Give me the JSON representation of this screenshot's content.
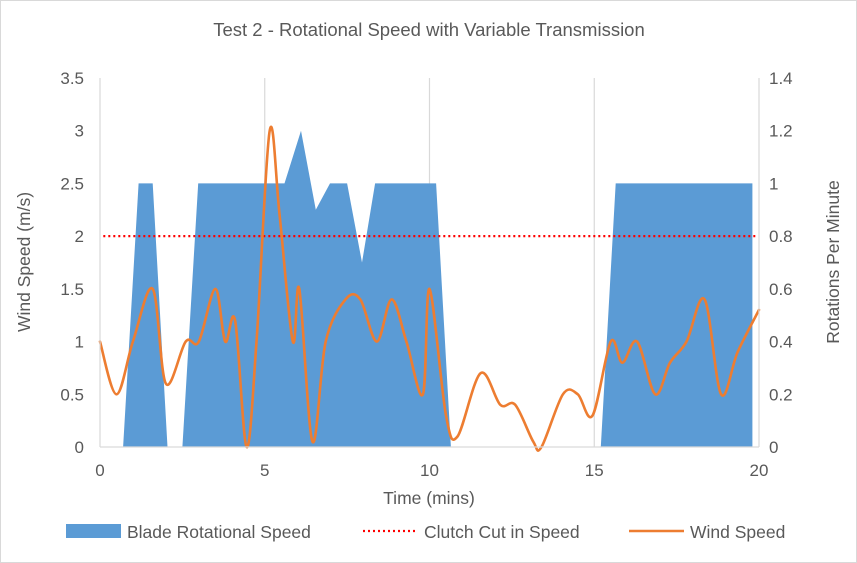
{
  "chart_data": {
    "type": "area",
    "title": "Test 2 - Rotational Speed with Variable Transmission",
    "xlabel": "Time (mins)",
    "ylabel": "Wind Speed (m/s)",
    "y2label": "Rotations Per Minute",
    "xlim": [
      0,
      20
    ],
    "ylim": [
      0,
      3.5
    ],
    "y2lim": [
      0,
      1.4
    ],
    "x_ticks": [
      "0",
      "5",
      "10",
      "15",
      "20"
    ],
    "y_ticks": [
      "0",
      "0.5",
      "1",
      "1.5",
      "2",
      "2.5",
      "3",
      "3.5"
    ],
    "y2_ticks": [
      "0",
      "0.2",
      "0.4",
      "0.6",
      "0.8",
      "1",
      "1.2",
      "1.4"
    ],
    "x_grid": true,
    "y_grid": false,
    "legend_position": "bottom",
    "series": [
      {
        "name": "Blade Rotational Speed",
        "type": "area",
        "axis": "right",
        "color": "#5b9bd5",
        "points": [
          [
            0.7,
            0
          ],
          [
            1.17,
            1
          ],
          [
            1.6,
            1
          ],
          [
            2.05,
            0
          ],
          [
            2.5,
            0
          ],
          [
            2.98,
            1
          ],
          [
            5.6,
            1
          ],
          [
            6.1,
            1.2
          ],
          [
            6.55,
            0.9
          ],
          [
            6.98,
            1
          ],
          [
            7.5,
            1
          ],
          [
            7.95,
            0.7
          ],
          [
            8.35,
            1
          ],
          [
            10.2,
            1
          ],
          [
            10.65,
            0
          ],
          [
            15.2,
            0
          ],
          [
            15.65,
            1
          ],
          [
            19.8,
            1
          ],
          [
            19.8,
            0
          ]
        ]
      },
      {
        "name": "Clutch Cut in Speed",
        "type": "line",
        "axis": "left",
        "color": "#ff0000",
        "dash": "dotted",
        "points": [
          [
            0.1,
            2
          ],
          [
            19.9,
            2
          ]
        ]
      },
      {
        "name": "Wind Speed",
        "type": "line",
        "axis": "left",
        "color": "#ed7d31",
        "points": [
          [
            0,
            1
          ],
          [
            0.5,
            0.5
          ],
          [
            1,
            1
          ],
          [
            1.6,
            1.5
          ],
          [
            2,
            0.6
          ],
          [
            2.6,
            1
          ],
          [
            3,
            1
          ],
          [
            3.5,
            1.5
          ],
          [
            3.8,
            1
          ],
          [
            4.1,
            1.2
          ],
          [
            4.45,
            0
          ],
          [
            4.75,
            1
          ],
          [
            5.15,
            3
          ],
          [
            5.45,
            2.2
          ],
          [
            5.85,
            1
          ],
          [
            6.05,
            1.5
          ],
          [
            6.45,
            0.05
          ],
          [
            6.85,
            1
          ],
          [
            7.45,
            1.4
          ],
          [
            7.9,
            1.4
          ],
          [
            8.4,
            1
          ],
          [
            8.85,
            1.4
          ],
          [
            9.3,
            1
          ],
          [
            9.8,
            0.5
          ],
          [
            10,
            1.5
          ],
          [
            10.5,
            0.3
          ],
          [
            10.85,
            0.1
          ],
          [
            11.55,
            0.7
          ],
          [
            12.15,
            0.4
          ],
          [
            12.6,
            0.4
          ],
          [
            13.15,
            0.05
          ],
          [
            13.4,
            0
          ],
          [
            14.05,
            0.5
          ],
          [
            14.5,
            0.5
          ],
          [
            14.95,
            0.3
          ],
          [
            15.5,
            1
          ],
          [
            15.85,
            0.8
          ],
          [
            16.3,
            1
          ],
          [
            16.85,
            0.5
          ],
          [
            17.3,
            0.8
          ],
          [
            17.8,
            1
          ],
          [
            18.35,
            1.4
          ],
          [
            18.85,
            0.5
          ],
          [
            19.35,
            0.9
          ],
          [
            20,
            1.3
          ]
        ]
      }
    ]
  }
}
